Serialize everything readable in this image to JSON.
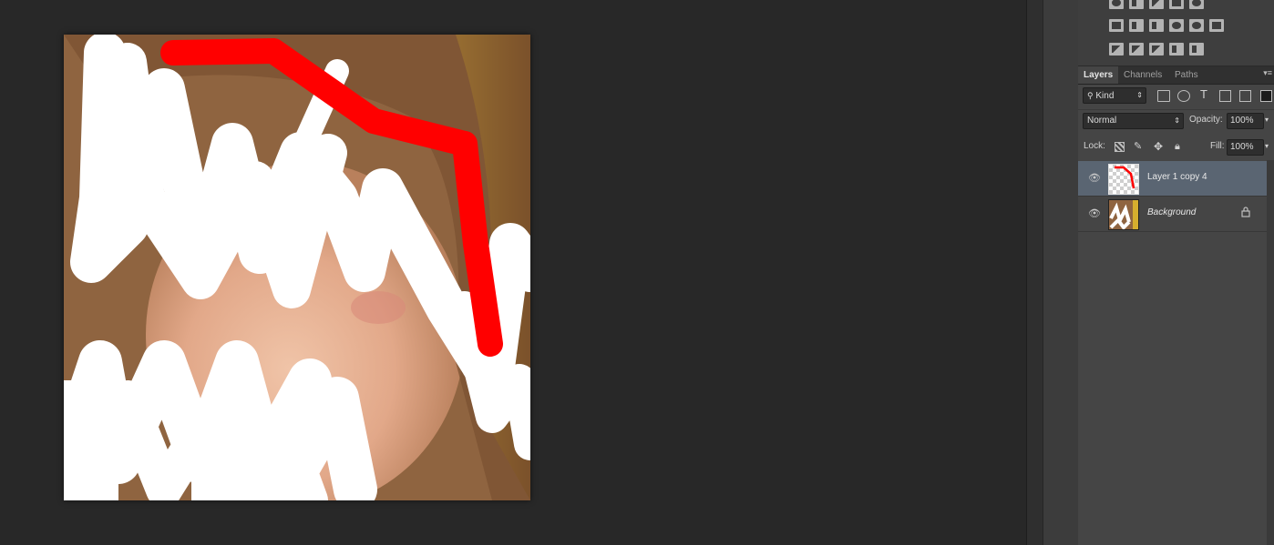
{
  "canvas": {
    "colors": {
      "background": "#282828",
      "brush_white": "#ffffff",
      "brush_red": "#ff0000"
    }
  },
  "panel": {
    "tabs": [
      {
        "label": "Layers",
        "active": true
      },
      {
        "label": "Channels",
        "active": false
      },
      {
        "label": "Paths",
        "active": false
      }
    ],
    "filter": {
      "kind_label": "Kind"
    },
    "blend_mode": "Normal",
    "opacity_label": "Opacity:",
    "opacity_value": "100%",
    "lock_label": "Lock:",
    "fill_label": "Fill:",
    "fill_value": "100%",
    "layers": [
      {
        "name": "Layer 1 copy 4",
        "selected": true,
        "visible": true,
        "locked": false
      },
      {
        "name": "Background",
        "selected": false,
        "visible": true,
        "locked": true,
        "italic": true
      }
    ],
    "colors": {
      "panel_bg": "#454545",
      "selected_row": "#5a6572"
    }
  }
}
